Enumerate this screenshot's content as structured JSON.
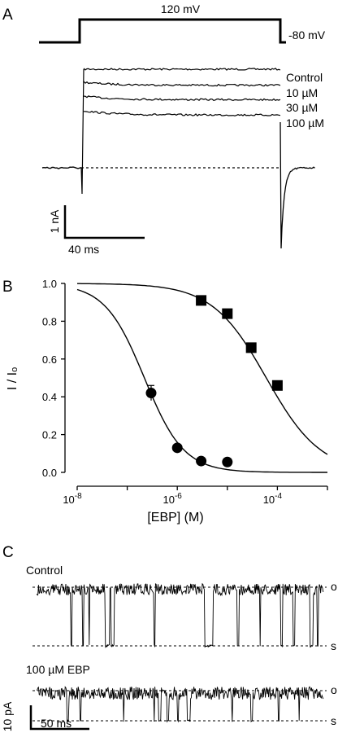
{
  "panels": {
    "a": {
      "letter": "A",
      "protocol": {
        "step_label": "120 mV",
        "hold_label": "-80 mV"
      },
      "traces": [
        "Control",
        "10 µM",
        "30 µM",
        "100 µM"
      ],
      "scale_bar": {
        "y_label": "1 nA",
        "x_label": "40 ms"
      },
      "trace_colors": {
        "trace": "#000000",
        "baseline": "#000000"
      }
    },
    "b": {
      "letter": "B"
    },
    "c": {
      "letter": "C",
      "traces": [
        {
          "label": "Control",
          "open_label": "o",
          "shut_label": "s"
        },
        {
          "label": "100 µM EBP",
          "open_label": "o",
          "shut_label": "s"
        }
      ],
      "scale_bar": {
        "y_label": "10 pA",
        "x_label": "50 ms"
      }
    }
  },
  "chart_data": [
    {
      "panel": "B",
      "type": "scatter",
      "xlabel": "[EBP] (M)",
      "ylabel": "I / Iₒ",
      "x_scale": "log",
      "xlim": [
        1e-08,
        0.001
      ],
      "ylim": [
        0,
        1.0
      ],
      "x_ticks": [
        {
          "value": 1e-08,
          "base": "10",
          "exp": "-8"
        },
        {
          "value": 1e-06,
          "base": "10",
          "exp": "-6"
        },
        {
          "value": 0.0001,
          "base": "10",
          "exp": "-4"
        }
      ],
      "y_ticks": [
        "0.0",
        "0.2",
        "0.4",
        "0.6",
        "0.8",
        "1.0"
      ],
      "series": [
        {
          "marker": "circle",
          "x": [
            3e-07,
            1e-06,
            3e-06,
            1e-05
          ],
          "y": [
            0.42,
            0.13,
            0.06,
            0.055
          ],
          "error": [
            0.04,
            0,
            0,
            0
          ],
          "fit_ic50": 2.2e-07,
          "fit_hill": 1.1
        },
        {
          "marker": "square",
          "x": [
            3e-06,
            1e-05,
            3e-05,
            0.0001
          ],
          "y": [
            0.91,
            0.84,
            0.66,
            0.46
          ],
          "error": [
            0,
            0,
            0,
            0
          ],
          "fit_ic50": 6e-05,
          "fit_hill": 0.8
        }
      ]
    }
  ]
}
